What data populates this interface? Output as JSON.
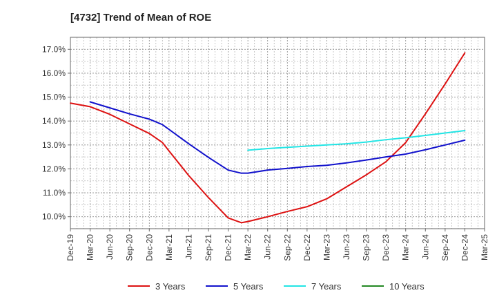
{
  "chart_data": {
    "type": "line",
    "title": "[4732]  Trend of Mean of ROE",
    "xlabel": "",
    "ylabel": "",
    "x_ticks": [
      "Dec-19",
      "Mar-20",
      "Jun-20",
      "Sep-20",
      "Dec-20",
      "Mar-21",
      "Jun-21",
      "Sep-21",
      "Dec-21",
      "Mar-22",
      "Jun-22",
      "Sep-22",
      "Dec-22",
      "Mar-23",
      "Jun-23",
      "Sep-23",
      "Dec-23",
      "Mar-24",
      "Jun-24",
      "Sep-24",
      "Dec-24",
      "Mar-25"
    ],
    "y_ticks": [
      "10.0%",
      "11.0%",
      "12.0%",
      "13.0%",
      "14.0%",
      "15.0%",
      "16.0%",
      "17.0%"
    ],
    "y_tick_values": [
      10,
      11,
      12,
      13,
      14,
      15,
      16,
      17
    ],
    "ylim": [
      9.5,
      17.5
    ],
    "grid": true,
    "legend_position": "bottom",
    "series": [
      {
        "name": "3 Years",
        "color": "#dd1111",
        "points": [
          [
            "Dec-19",
            14.75
          ],
          [
            "Mar-20",
            14.6
          ],
          [
            "Jun-20",
            14.28
          ],
          [
            "Sep-20",
            13.88
          ],
          [
            "Dec-20",
            13.48
          ],
          [
            "Feb-21",
            13.1
          ],
          [
            "Mar-21",
            12.75
          ],
          [
            "Jun-21",
            11.72
          ],
          [
            "Sep-21",
            10.8
          ],
          [
            "Dec-21",
            9.95
          ],
          [
            "Feb-22",
            9.75
          ],
          [
            "Mar-22",
            9.8
          ],
          [
            "Jun-22",
            10.0
          ],
          [
            "Sep-22",
            10.22
          ],
          [
            "Dec-22",
            10.42
          ],
          [
            "Mar-23",
            10.75
          ],
          [
            "Jun-23",
            11.25
          ],
          [
            "Sep-23",
            11.75
          ],
          [
            "Dec-23",
            12.3
          ],
          [
            "Mar-24",
            13.1
          ],
          [
            "Jun-24",
            14.3
          ],
          [
            "Sep-24",
            15.55
          ],
          [
            "Dec-24",
            16.85
          ]
        ]
      },
      {
        "name": "5 Years",
        "color": "#1111cc",
        "points": [
          [
            "Mar-20",
            14.8
          ],
          [
            "Jun-20",
            14.55
          ],
          [
            "Sep-20",
            14.3
          ],
          [
            "Dec-20",
            14.08
          ],
          [
            "Feb-21",
            13.85
          ],
          [
            "Mar-21",
            13.65
          ],
          [
            "Jun-21",
            13.05
          ],
          [
            "Sep-21",
            12.48
          ],
          [
            "Dec-21",
            11.95
          ],
          [
            "Feb-22",
            11.82
          ],
          [
            "Mar-22",
            11.82
          ],
          [
            "Jun-22",
            11.95
          ],
          [
            "Sep-22",
            12.02
          ],
          [
            "Dec-22",
            12.1
          ],
          [
            "Mar-23",
            12.15
          ],
          [
            "Jun-23",
            12.25
          ],
          [
            "Sep-23",
            12.37
          ],
          [
            "Dec-23",
            12.5
          ],
          [
            "Mar-24",
            12.62
          ],
          [
            "Jun-24",
            12.8
          ],
          [
            "Sep-24",
            13.0
          ],
          [
            "Dec-24",
            13.2
          ]
        ]
      },
      {
        "name": "7 Years",
        "color": "#22e5e5",
        "points": [
          [
            "Mar-22",
            12.78
          ],
          [
            "Jun-22",
            12.85
          ],
          [
            "Sep-22",
            12.9
          ],
          [
            "Dec-22",
            12.95
          ],
          [
            "Mar-23",
            13.0
          ],
          [
            "Jun-23",
            13.05
          ],
          [
            "Sep-23",
            13.12
          ],
          [
            "Dec-23",
            13.22
          ],
          [
            "Mar-24",
            13.3
          ],
          [
            "Jun-24",
            13.4
          ],
          [
            "Sep-24",
            13.5
          ],
          [
            "Dec-24",
            13.6
          ]
        ]
      },
      {
        "name": "10 Years",
        "color": "#228822",
        "points": []
      }
    ]
  }
}
